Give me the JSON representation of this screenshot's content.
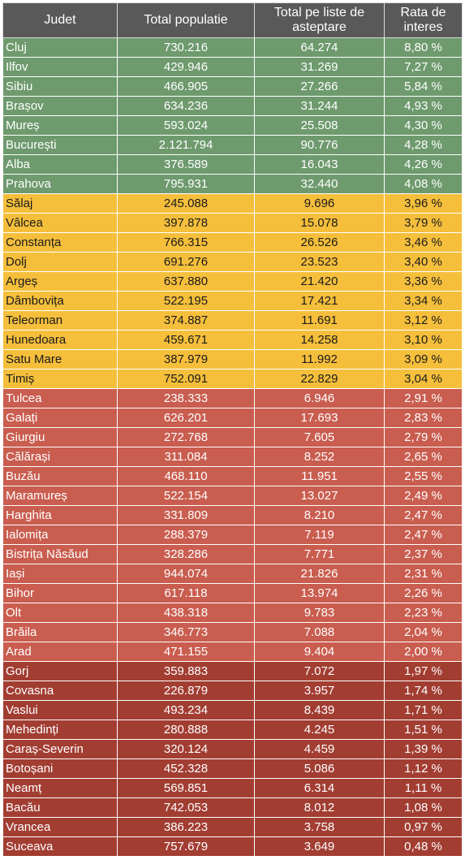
{
  "headers": [
    "Judet",
    "Total populatie",
    "Total pe liste de asteptare",
    "Rata de interes"
  ],
  "colors": {
    "green": "#6e9a6e",
    "yellow": "#f5bf3c",
    "red": "#c95d4f",
    "darkred": "#a23d32",
    "header": "#595959"
  },
  "rows": [
    {
      "judet": "Cluj",
      "populatie": "730.216",
      "liste": "64.274",
      "rata": "8,80 %",
      "group": "green"
    },
    {
      "judet": "Ilfov",
      "populatie": "429.946",
      "liste": "31.269",
      "rata": "7,27 %",
      "group": "green"
    },
    {
      "judet": "Sibiu",
      "populatie": "466.905",
      "liste": "27.266",
      "rata": "5,84 %",
      "group": "green"
    },
    {
      "judet": "Brașov",
      "populatie": "634.236",
      "liste": "31.244",
      "rata": "4,93 %",
      "group": "green"
    },
    {
      "judet": "Mureș",
      "populatie": "593.024",
      "liste": "25.508",
      "rata": "4,30 %",
      "group": "green"
    },
    {
      "judet": "București",
      "populatie": "2.121.794",
      "liste": "90.776",
      "rata": "4,28 %",
      "group": "green"
    },
    {
      "judet": "Alba",
      "populatie": "376.589",
      "liste": "16.043",
      "rata": "4,26 %",
      "group": "green"
    },
    {
      "judet": "Prahova",
      "populatie": "795.931",
      "liste": "32.440",
      "rata": "4,08 %",
      "group": "green"
    },
    {
      "judet": "Sălaj",
      "populatie": "245.088",
      "liste": "9.696",
      "rata": "3,96 %",
      "group": "yellow"
    },
    {
      "judet": "Vâlcea",
      "populatie": "397.878",
      "liste": "15.078",
      "rata": "3,79 %",
      "group": "yellow"
    },
    {
      "judet": "Constanța",
      "populatie": "766.315",
      "liste": "26.526",
      "rata": "3,46 %",
      "group": "yellow"
    },
    {
      "judet": "Dolj",
      "populatie": "691.276",
      "liste": "23.523",
      "rata": "3,40 %",
      "group": "yellow"
    },
    {
      "judet": "Argeș",
      "populatie": "637.880",
      "liste": "21.420",
      "rata": "3,36 %",
      "group": "yellow"
    },
    {
      "judet": "Dâmbovița",
      "populatie": "522.195",
      "liste": "17.421",
      "rata": "3,34 %",
      "group": "yellow"
    },
    {
      "judet": "Teleorman",
      "populatie": "374.887",
      "liste": "11.691",
      "rata": "3,12 %",
      "group": "yellow"
    },
    {
      "judet": "Hunedoara",
      "populatie": "459.671",
      "liste": "14.258",
      "rata": "3,10 %",
      "group": "yellow"
    },
    {
      "judet": "Satu Mare",
      "populatie": "387.979",
      "liste": "11.992",
      "rata": "3,09 %",
      "group": "yellow"
    },
    {
      "judet": "Timiș",
      "populatie": "752.091",
      "liste": "22.829",
      "rata": "3,04 %",
      "group": "yellow"
    },
    {
      "judet": "Tulcea",
      "populatie": "238.333",
      "liste": "6.946",
      "rata": "2,91 %",
      "group": "red"
    },
    {
      "judet": "Galați",
      "populatie": "626.201",
      "liste": "17.693",
      "rata": "2,83 %",
      "group": "red"
    },
    {
      "judet": "Giurgiu",
      "populatie": "272.768",
      "liste": "7.605",
      "rata": "2,79 %",
      "group": "red"
    },
    {
      "judet": "Călărași",
      "populatie": "311.084",
      "liste": "8.252",
      "rata": "2,65 %",
      "group": "red"
    },
    {
      "judet": "Buzău",
      "populatie": "468.110",
      "liste": "11.951",
      "rata": "2,55 %",
      "group": "red"
    },
    {
      "judet": "Maramureș",
      "populatie": "522.154",
      "liste": "13.027",
      "rata": "2,49 %",
      "group": "red"
    },
    {
      "judet": "Harghita",
      "populatie": "331.809",
      "liste": "8.210",
      "rata": "2,47 %",
      "group": "red"
    },
    {
      "judet": "Ialomița",
      "populatie": "288.379",
      "liste": "7.119",
      "rata": "2,47 %",
      "group": "red"
    },
    {
      "judet": "Bistrița Năsăud",
      "populatie": "328.286",
      "liste": "7.771",
      "rata": "2,37 %",
      "group": "red"
    },
    {
      "judet": "Iași",
      "populatie": "944.074",
      "liste": "21.826",
      "rata": "2,31 %",
      "group": "red"
    },
    {
      "judet": "Bihor",
      "populatie": "617.118",
      "liste": "13.974",
      "rata": "2,26 %",
      "group": "red"
    },
    {
      "judet": "Olt",
      "populatie": "438.318",
      "liste": "9.783",
      "rata": "2,23 %",
      "group": "red"
    },
    {
      "judet": "Brăila",
      "populatie": "346.773",
      "liste": "7.088",
      "rata": "2,04 %",
      "group": "red"
    },
    {
      "judet": "Arad",
      "populatie": "471.155",
      "liste": "9.404",
      "rata": "2,00 %",
      "group": "red"
    },
    {
      "judet": "Gorj",
      "populatie": "359.883",
      "liste": "7.072",
      "rata": "1,97 %",
      "group": "darkred"
    },
    {
      "judet": "Covasna",
      "populatie": "226.879",
      "liste": "3.957",
      "rata": "1,74 %",
      "group": "darkred"
    },
    {
      "judet": "Vaslui",
      "populatie": "493.234",
      "liste": "8.439",
      "rata": "1,71 %",
      "group": "darkred"
    },
    {
      "judet": "Mehedinți",
      "populatie": "280.888",
      "liste": "4.245",
      "rata": "1,51 %",
      "group": "darkred"
    },
    {
      "judet": "Caraș-Severin",
      "populatie": "320.124",
      "liste": "4.459",
      "rata": "1,39 %",
      "group": "darkred"
    },
    {
      "judet": "Botoșani",
      "populatie": "452.328",
      "liste": "5.086",
      "rata": "1,12 %",
      "group": "darkred"
    },
    {
      "judet": "Neamț",
      "populatie": "569.851",
      "liste": "6.314",
      "rata": "1,11 %",
      "group": "darkred"
    },
    {
      "judet": "Bacău",
      "populatie": "742.053",
      "liste": "8.012",
      "rata": "1,08 %",
      "group": "darkred"
    },
    {
      "judet": "Vrancea",
      "populatie": "386.223",
      "liste": "3.758",
      "rata": "0,97 %",
      "group": "darkred"
    },
    {
      "judet": "Suceava",
      "populatie": "757.679",
      "liste": "3.649",
      "rata": "0,48 %",
      "group": "darkred"
    }
  ]
}
